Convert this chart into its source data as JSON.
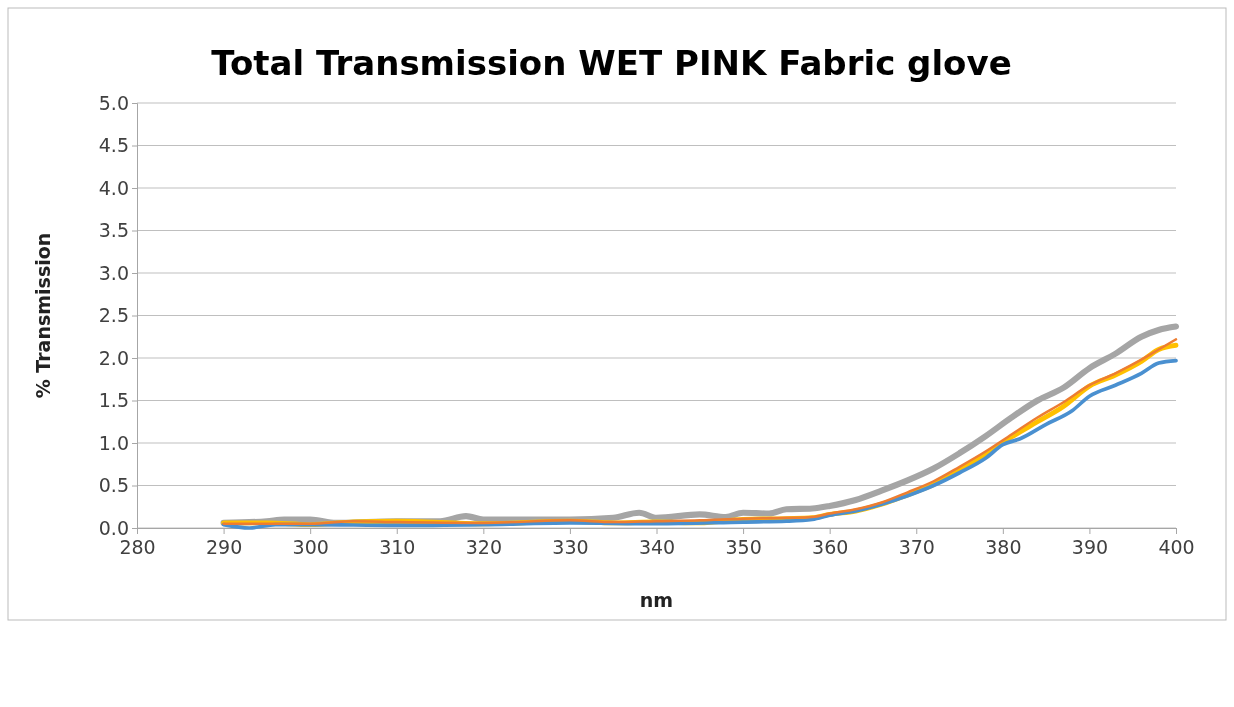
{
  "chart_data": {
    "type": "line",
    "title": "Total Transmission  WET PINK Fabric glove",
    "xlabel": "nm",
    "ylabel": "% Transmission",
    "xlim": [
      280,
      400
    ],
    "xticks": [
      280,
      290,
      300,
      310,
      320,
      330,
      340,
      350,
      360,
      370,
      380,
      390,
      400
    ],
    "ylim": [
      0,
      5
    ],
    "yticks": [
      {
        "value": 0,
        "label": "0.0"
      },
      {
        "value": 0.5,
        "label": "0.5"
      },
      {
        "value": 1,
        "label": "1.0"
      },
      {
        "value": 1.5,
        "label": "1.5"
      },
      {
        "value": 2,
        "label": "2.0"
      },
      {
        "value": 2.5,
        "label": "2.5"
      },
      {
        "value": 3,
        "label": "3.0"
      },
      {
        "value": 3.5,
        "label": "3.5"
      },
      {
        "value": 4,
        "label": "4.0"
      },
      {
        "value": 4.5,
        "label": "4.5"
      },
      {
        "value": 5,
        "label": "5.0"
      }
    ],
    "grid": "y",
    "marker": "none",
    "line_style": "solid",
    "series": [
      {
        "color": "#a5a5a5",
        "x": [
          290,
          295,
          297,
          300,
          303,
          310,
          315,
          318,
          320,
          325,
          330,
          335,
          338,
          340,
          345,
          348,
          350,
          353,
          355,
          358,
          360,
          363,
          366,
          369,
          372,
          375,
          378,
          381,
          384,
          387,
          390,
          393,
          396,
          398,
          400
        ],
        "values": [
          0.06,
          0.08,
          0.1,
          0.1,
          0.06,
          0.08,
          0.08,
          0.14,
          0.1,
          0.1,
          0.1,
          0.12,
          0.18,
          0.12,
          0.16,
          0.13,
          0.18,
          0.17,
          0.22,
          0.23,
          0.26,
          0.33,
          0.44,
          0.56,
          0.7,
          0.88,
          1.08,
          1.3,
          1.5,
          1.65,
          1.88,
          2.05,
          2.25,
          2.33,
          2.37
        ]
      },
      {
        "color": "#ffc000",
        "x": [
          290,
          295,
          300,
          305,
          310,
          320,
          330,
          335,
          340,
          345,
          350,
          355,
          358,
          360,
          363,
          366,
          369,
          372,
          375,
          378,
          381,
          384,
          387,
          390,
          393,
          396,
          398,
          400
        ],
        "values": [
          0.06,
          0.06,
          0.04,
          0.07,
          0.08,
          0.05,
          0.08,
          0.06,
          0.07,
          0.06,
          0.1,
          0.11,
          0.12,
          0.16,
          0.2,
          0.28,
          0.39,
          0.51,
          0.68,
          0.86,
          1.07,
          1.25,
          1.43,
          1.67,
          1.8,
          1.96,
          2.1,
          2.15
        ]
      },
      {
        "color": "#4a90d0",
        "x": [
          290,
          293,
          296,
          300,
          310,
          320,
          330,
          340,
          350,
          355,
          358,
          360,
          363,
          366,
          369,
          372,
          375,
          378,
          380,
          382,
          385,
          388,
          390,
          393,
          396,
          398,
          400
        ],
        "values": [
          0.04,
          0.0,
          0.04,
          0.04,
          0.03,
          0.04,
          0.06,
          0.05,
          0.07,
          0.08,
          0.1,
          0.15,
          0.2,
          0.28,
          0.38,
          0.5,
          0.65,
          0.82,
          0.98,
          1.05,
          1.22,
          1.38,
          1.55,
          1.68,
          1.82,
          1.94,
          1.97
        ]
      },
      {
        "color": "#ed7d31",
        "x": [
          290,
          300,
          305,
          310,
          320,
          330,
          335,
          340,
          345,
          350,
          355,
          358,
          360,
          363,
          366,
          369,
          372,
          375,
          378,
          381,
          384,
          387,
          390,
          393,
          396,
          398,
          400
        ],
        "values": [
          0.05,
          0.05,
          0.08,
          0.07,
          0.06,
          0.09,
          0.07,
          0.08,
          0.09,
          0.11,
          0.12,
          0.13,
          0.17,
          0.22,
          0.3,
          0.42,
          0.55,
          0.72,
          0.9,
          1.1,
          1.3,
          1.48,
          1.68,
          1.82,
          1.98,
          2.1,
          2.22
        ]
      }
    ]
  }
}
